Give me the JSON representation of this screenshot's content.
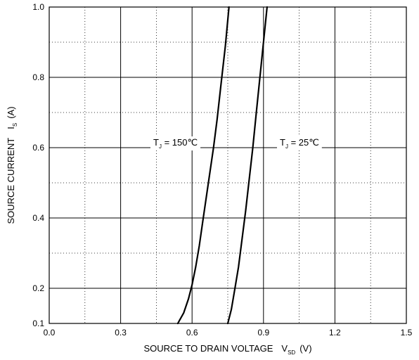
{
  "chart_data": {
    "type": "line",
    "x_label": {
      "main": "SOURCE TO DRAIN VOLTAGE",
      "symbol": "V",
      "sub": "SD",
      "unit": "(V)"
    },
    "y_label": {
      "main": "SOURCE CURRENT",
      "symbol": "I",
      "sub": "S",
      "unit": "(A)"
    },
    "xlim": [
      0.0,
      1.5
    ],
    "ylim": [
      0.1,
      1.0
    ],
    "x_ticks": [
      "0.0",
      "0.3",
      "0.6",
      "0.9",
      "1.2",
      "1.5"
    ],
    "y_ticks": [
      "0.1",
      "0.2",
      "0.4",
      "0.6",
      "0.8",
      "1.0"
    ],
    "grid": {
      "major": "solid",
      "minor": "dotted"
    },
    "series": [
      {
        "name": "T_J = 150°C",
        "label": {
          "symbol": "T",
          "sub": "J",
          "text": " = 150℃"
        },
        "x": [
          0.54,
          0.565,
          0.585,
          0.6,
          0.615,
          0.63,
          0.645,
          0.66,
          0.675,
          0.69,
          0.705,
          0.72,
          0.74,
          0.755
        ],
        "y": [
          0.1,
          0.13,
          0.17,
          0.21,
          0.26,
          0.32,
          0.39,
          0.46,
          0.53,
          0.6,
          0.68,
          0.77,
          0.89,
          1.0
        ]
      },
      {
        "name": "T_J = 25°C",
        "label": {
          "symbol": "T",
          "sub": "J",
          "text": " = 25℃"
        },
        "x": [
          0.75,
          0.765,
          0.78,
          0.795,
          0.81,
          0.825,
          0.84,
          0.855,
          0.87,
          0.885,
          0.9,
          0.915
        ],
        "y": [
          0.1,
          0.14,
          0.2,
          0.26,
          0.34,
          0.42,
          0.51,
          0.6,
          0.7,
          0.8,
          0.9,
          1.0
        ]
      }
    ]
  }
}
